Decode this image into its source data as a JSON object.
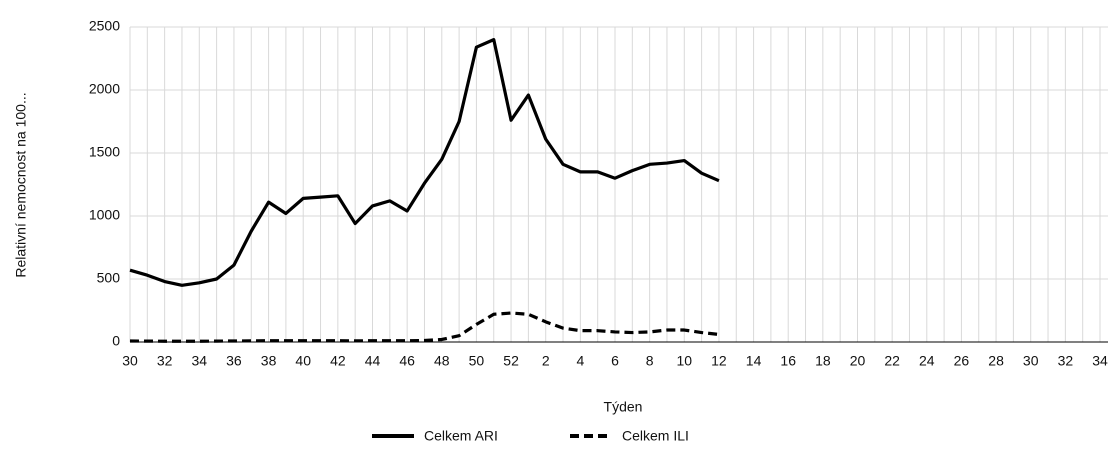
{
  "chart_data": {
    "type": "line",
    "xlabel": "Týden",
    "ylabel": "Relativní nemocnost na 100...",
    "categories": [
      30,
      null,
      32,
      null,
      34,
      null,
      36,
      null,
      38,
      null,
      40,
      null,
      42,
      null,
      44,
      null,
      46,
      null,
      48,
      null,
      50,
      null,
      52,
      null,
      2,
      null,
      4,
      null,
      6,
      null,
      8,
      null,
      10,
      null,
      12,
      null,
      14,
      null,
      16,
      null,
      18,
      null,
      20,
      null,
      22,
      null,
      24,
      null,
      26,
      null,
      28,
      null,
      30,
      null,
      32,
      null,
      34
    ],
    "series": [
      {
        "name": "Celkem ARI",
        "color": "#000000",
        "dash": "solid",
        "values": [
          570,
          530,
          480,
          450,
          470,
          500,
          610,
          880,
          1110,
          1020,
          1140,
          1150,
          1160,
          940,
          1080,
          1120,
          1040,
          1260,
          1450,
          1750,
          2340,
          2400,
          1760,
          1960,
          1610,
          1410,
          1350,
          1350,
          1300,
          1360,
          1410,
          1420,
          1440,
          1340,
          1280,
          null,
          null,
          null,
          null,
          null,
          null,
          null,
          null,
          null,
          null,
          null,
          null,
          null,
          null,
          null,
          null,
          null,
          null,
          null,
          null,
          null,
          null
        ]
      },
      {
        "name": "Celkem ILI",
        "color": "#000000",
        "dash": "dashed",
        "values": [
          8,
          7,
          6,
          6,
          6,
          7,
          8,
          9,
          10,
          10,
          10,
          10,
          10,
          9,
          10,
          10,
          10,
          12,
          20,
          50,
          140,
          220,
          230,
          220,
          160,
          110,
          90,
          90,
          80,
          75,
          80,
          95,
          95,
          75,
          60,
          null,
          null,
          null,
          null,
          null,
          null,
          null,
          null,
          null,
          null,
          null,
          null,
          null,
          null,
          null,
          null,
          null,
          null,
          null,
          null,
          null,
          null
        ]
      }
    ],
    "ylim": [
      0,
      2500
    ],
    "yticks": [
      0,
      500,
      1000,
      1500,
      2000,
      2500
    ],
    "grid": true,
    "legend": "bottom"
  }
}
